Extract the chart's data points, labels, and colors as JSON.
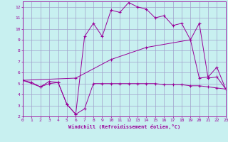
{
  "xlabel": "Windchill (Refroidissement éolien,°C)",
  "bg_color": "#c8f0f0",
  "grid_color": "#a0a0cc",
  "line_color": "#990099",
  "xlim": [
    0,
    23
  ],
  "ylim": [
    2,
    12.5
  ],
  "xticks": [
    0,
    1,
    2,
    3,
    4,
    5,
    6,
    7,
    8,
    9,
    10,
    11,
    12,
    13,
    14,
    15,
    16,
    17,
    18,
    19,
    20,
    21,
    22,
    23
  ],
  "yticks": [
    2,
    3,
    4,
    5,
    6,
    7,
    8,
    9,
    10,
    11,
    12
  ],
  "line1_x": [
    0,
    1,
    2,
    3,
    4,
    5,
    6,
    7,
    8,
    9,
    10,
    11,
    12,
    13,
    14,
    15,
    16,
    17,
    18,
    19,
    20,
    21,
    22,
    23
  ],
  "line1_y": [
    5.3,
    5.1,
    4.7,
    5.0,
    5.1,
    3.1,
    2.2,
    2.7,
    5.0,
    5.0,
    5.0,
    5.0,
    5.0,
    5.0,
    5.0,
    5.0,
    4.9,
    4.9,
    4.9,
    4.8,
    4.8,
    4.7,
    4.6,
    4.5
  ],
  "line2_x": [
    0,
    2,
    3,
    4,
    5,
    6,
    7,
    8,
    9,
    10,
    11,
    12,
    13,
    14,
    15,
    16,
    17,
    18,
    19,
    20,
    21,
    22,
    23
  ],
  "line2_y": [
    5.3,
    4.7,
    5.2,
    5.1,
    3.1,
    2.2,
    9.3,
    10.5,
    9.3,
    11.7,
    11.5,
    12.4,
    12.0,
    11.8,
    11.0,
    11.2,
    10.3,
    10.5,
    9.0,
    5.5,
    5.6,
    6.5,
    4.5
  ],
  "line3_x": [
    0,
    6,
    10,
    14,
    19,
    20,
    21,
    22,
    23
  ],
  "line3_y": [
    5.3,
    5.5,
    7.2,
    8.3,
    9.0,
    10.5,
    5.5,
    5.6,
    4.5
  ]
}
